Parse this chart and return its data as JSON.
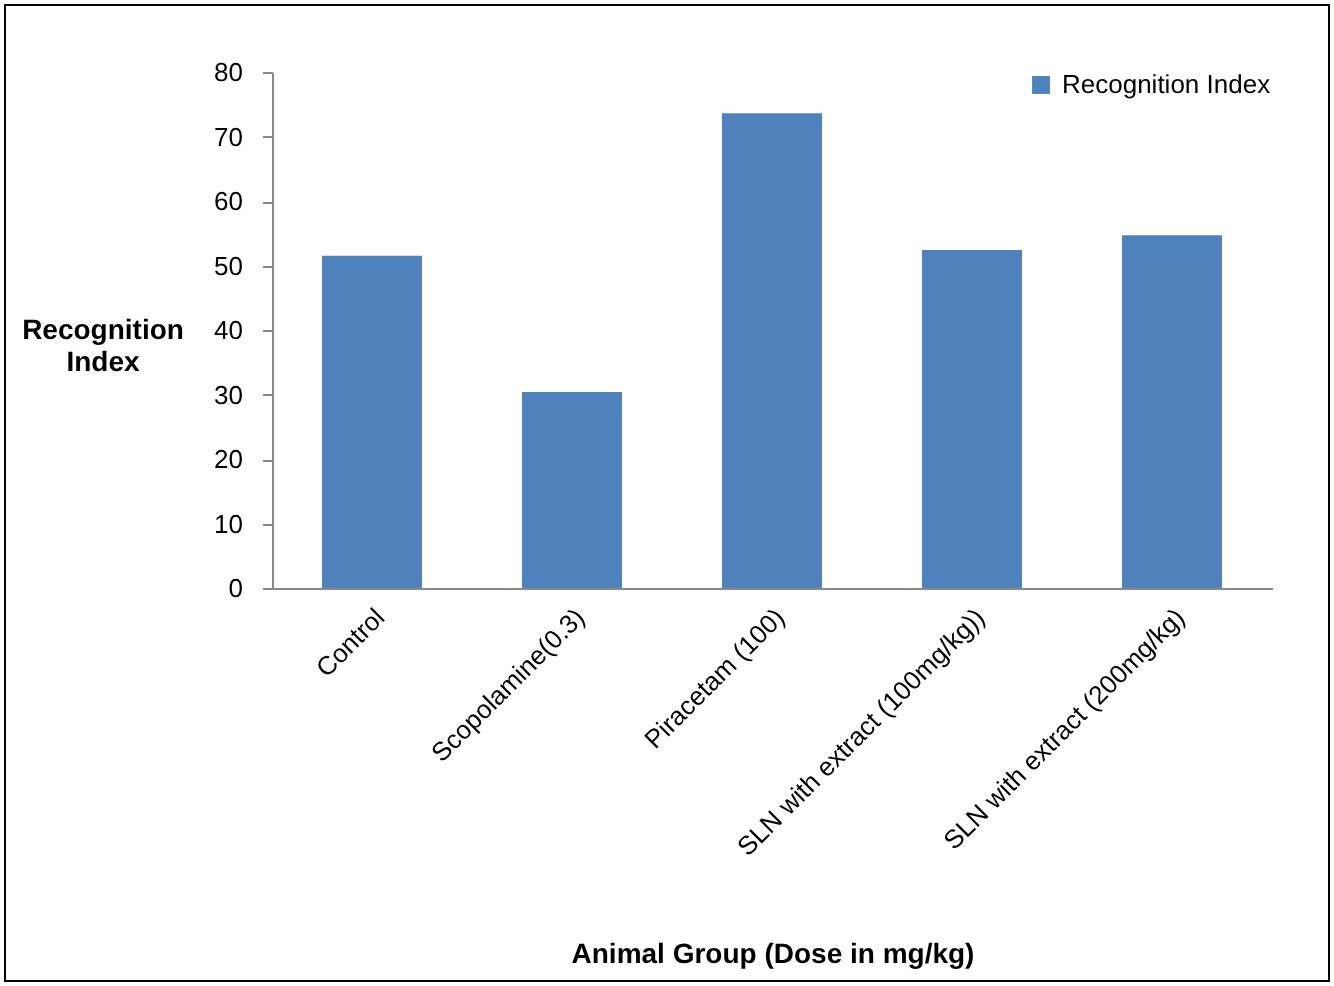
{
  "chart_data": {
    "type": "bar",
    "xlabel": "Animal Group (Dose in mg/kg)",
    "ylabel": "Recognition Index",
    "categories": [
      "Control",
      "Scopolamine(0.3)",
      "Piracetam (100)",
      "SLN with extract (100mg/kg))",
      "SLN with extract (200mg/kg)"
    ],
    "series": [
      {
        "name": "Recognition Index",
        "color": "#4f81bd",
        "values": [
          51.5,
          30.4,
          73.6,
          52.4,
          54.7
        ]
      }
    ],
    "ylim": [
      0,
      80
    ],
    "yticks": [
      0,
      10,
      20,
      30,
      40,
      50,
      60,
      70,
      80
    ],
    "grid": false,
    "legend": "top right"
  }
}
